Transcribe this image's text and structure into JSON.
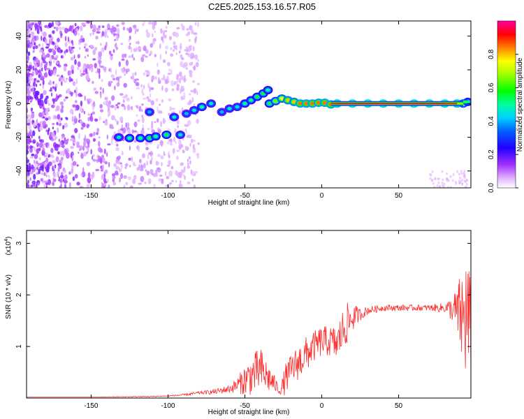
{
  "title": "C2E5.2025.153.16.57.R05",
  "colors": {
    "snr_line": "#ff2a2a",
    "ridge_low": "#7a1fe0",
    "background_speckle": "#8a3ff0"
  },
  "chart_data": [
    {
      "type": "heatmap",
      "xlabel": "Height of straight line (km)",
      "ylabel": "Frequency (Hz)",
      "xlim": [
        -192,
        97
      ],
      "ylim": [
        -50,
        49
      ],
      "x_ticks": [
        "-150",
        "-100",
        "-50",
        "0",
        "50"
      ],
      "x_tick_values": [
        -150,
        -100,
        -50,
        0,
        50
      ],
      "y_ticks": [
        "-40",
        "-20",
        "0",
        "20",
        "40"
      ],
      "y_tick_values": [
        -40,
        -20,
        0,
        20,
        40
      ],
      "colorbar": {
        "label": "Normalized spectral amplitude",
        "range": [
          0,
          1
        ],
        "ticks": [
          "0.0",
          "0.2",
          "0.4",
          "0.6",
          "0.8"
        ],
        "tick_values": [
          0,
          0.2,
          0.4,
          0.6,
          0.8
        ],
        "colors": [
          "#ffffff",
          "#b040ff",
          "#4000ff",
          "#0000ff",
          "#00a0ff",
          "#00ffd0",
          "#00ff00",
          "#a0ff00",
          "#ffff00",
          "#ff8000",
          "#ff0000",
          "#ff00a0"
        ]
      },
      "ridge": [
        {
          "x": -132,
          "y": -20,
          "a": 0.45
        },
        {
          "x": -125,
          "y": -20.5,
          "a": 0.5
        },
        {
          "x": -118,
          "y": -20.5,
          "a": 0.5
        },
        {
          "x": -112,
          "y": -20.5,
          "a": 0.55
        },
        {
          "x": -108,
          "y": -19.5,
          "a": 0.5
        },
        {
          "x": -101,
          "y": -18.5,
          "a": 0.55
        },
        {
          "x": -112,
          "y": -5,
          "a": 0.4
        },
        {
          "x": -96,
          "y": -8,
          "a": 0.45
        },
        {
          "x": -92,
          "y": -18.5,
          "a": 0.45
        },
        {
          "x": -88,
          "y": -6,
          "a": 0.4
        },
        {
          "x": -83,
          "y": -4,
          "a": 0.45
        },
        {
          "x": -78,
          "y": -2,
          "a": 0.5
        },
        {
          "x": -72,
          "y": 0,
          "a": 0.45
        },
        {
          "x": -65,
          "y": -5,
          "a": 0.4
        },
        {
          "x": -60,
          "y": -3,
          "a": 0.45
        },
        {
          "x": -55,
          "y": -2,
          "a": 0.45
        },
        {
          "x": -50,
          "y": 0,
          "a": 0.5
        },
        {
          "x": -46,
          "y": 2,
          "a": 0.5
        },
        {
          "x": -42,
          "y": 4,
          "a": 0.55
        },
        {
          "x": -38,
          "y": 6,
          "a": 0.55
        },
        {
          "x": -35,
          "y": 8,
          "a": 0.5
        },
        {
          "x": -34,
          "y": 0,
          "a": 0.55
        },
        {
          "x": -30,
          "y": 1.5,
          "a": 0.65
        },
        {
          "x": -26,
          "y": 3,
          "a": 0.75
        },
        {
          "x": -22,
          "y": 2,
          "a": 0.8
        },
        {
          "x": -18,
          "y": 1,
          "a": 0.8
        },
        {
          "x": -14,
          "y": 0,
          "a": 0.85
        },
        {
          "x": -10,
          "y": 0,
          "a": 0.85
        },
        {
          "x": -6,
          "y": 0,
          "a": 0.85
        },
        {
          "x": -2,
          "y": 0.5,
          "a": 0.85
        },
        {
          "x": 2,
          "y": 0.5,
          "a": 0.85
        },
        {
          "x": 6,
          "y": -0.5,
          "a": 0.85
        },
        {
          "x": 10,
          "y": 0,
          "a": 0.9
        },
        {
          "x": 20,
          "y": 0,
          "a": 0.95
        },
        {
          "x": 30,
          "y": 0,
          "a": 0.95
        },
        {
          "x": 40,
          "y": 0,
          "a": 0.95
        },
        {
          "x": 50,
          "y": 0,
          "a": 0.95
        },
        {
          "x": 60,
          "y": 0,
          "a": 0.95
        },
        {
          "x": 70,
          "y": 0,
          "a": 0.95
        },
        {
          "x": 80,
          "y": 0,
          "a": 0.95
        },
        {
          "x": 88,
          "y": 0,
          "a": 0.9
        },
        {
          "x": 92,
          "y": 0,
          "a": 0.7
        },
        {
          "x": 95,
          "y": 1,
          "a": 0.5
        }
      ]
    },
    {
      "type": "line",
      "xlabel": "Height of straight line (km)",
      "ylabel": "SNR (10 * v/v)",
      "y_multiplier_label": "(x10",
      "y_multiplier_exponent": "4",
      "y_multiplier_suffix": ")",
      "xlim": [
        -192,
        97
      ],
      "ylim": [
        0,
        3.25
      ],
      "x_ticks": [
        "-150",
        "-100",
        "-50",
        "0",
        "50"
      ],
      "x_tick_values": [
        -150,
        -100,
        -50,
        0,
        50
      ],
      "y_ticks": [
        "1",
        "2",
        "3"
      ],
      "y_tick_values": [
        1,
        2,
        3
      ],
      "series": [
        {
          "envelope_x": [
            -192,
            -150,
            -110,
            -100,
            -90,
            -80,
            -70,
            -60,
            -55,
            -50,
            -45,
            -40,
            -35,
            -30,
            -27,
            -24,
            -20,
            -15,
            -10,
            -5,
            0,
            5,
            10,
            15,
            18,
            22,
            25,
            30,
            40,
            50,
            60,
            70,
            80,
            85,
            88,
            90,
            92,
            94,
            96,
            97
          ],
          "envelope_base": [
            0.02,
            0.02,
            0.03,
            0.04,
            0.06,
            0.1,
            0.12,
            0.18,
            0.25,
            0.35,
            0.45,
            0.55,
            0.4,
            0.25,
            0.12,
            0.35,
            0.55,
            0.7,
            0.85,
            1.0,
            1.1,
            1.1,
            1.05,
            1.4,
            1.5,
            1.6,
            1.62,
            1.7,
            1.75,
            1.75,
            1.75,
            1.75,
            1.75,
            1.72,
            1.68,
            1.6,
            1.5,
            1.6,
            1.4,
            1.0
          ],
          "envelope_jitter": [
            0.0,
            0.0,
            0.01,
            0.01,
            0.02,
            0.03,
            0.05,
            0.08,
            0.15,
            0.3,
            0.4,
            0.45,
            0.3,
            0.15,
            0.05,
            0.3,
            0.3,
            0.35,
            0.35,
            0.3,
            0.3,
            0.3,
            0.35,
            0.45,
            0.35,
            0.2,
            0.12,
            0.08,
            0.06,
            0.06,
            0.06,
            0.06,
            0.1,
            0.25,
            0.5,
            0.8,
            1.1,
            1.3,
            1.2,
            1.0
          ]
        }
      ]
    }
  ]
}
